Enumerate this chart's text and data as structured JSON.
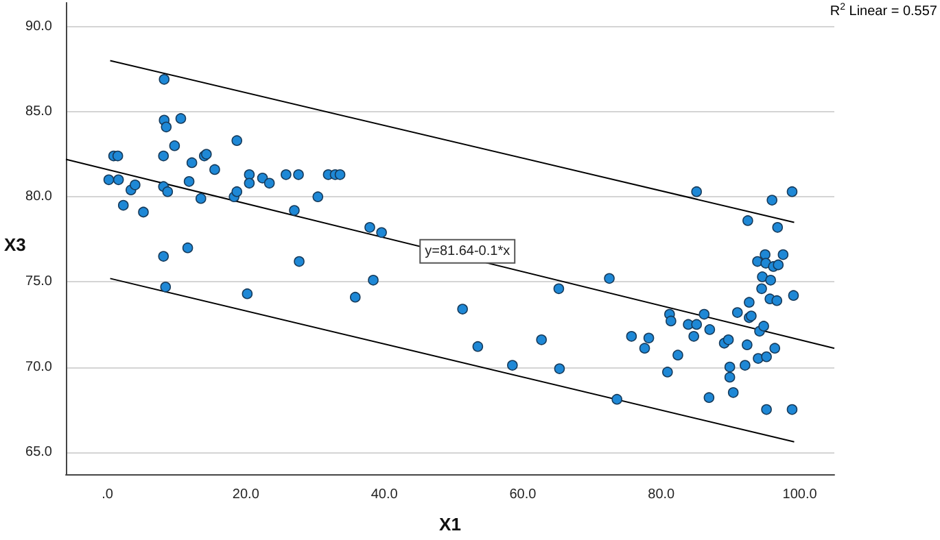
{
  "chart_data": {
    "type": "scatter",
    "xlabel": "X1",
    "ylabel": "X3",
    "annotations": [
      "R$^{2}$ Linear = 0.557",
      {
        "text": "y=81.64-0.1*x",
        "x": 52,
        "y": 76.8
      }
    ],
    "xlim": [
      -6,
      105
    ],
    "ylim": [
      63.7,
      91.4
    ],
    "xticks": [
      {
        "value": 0,
        "label": ".0"
      },
      {
        "value": 20,
        "label": "20.0"
      },
      {
        "value": 40,
        "label": "40.0"
      },
      {
        "value": 60,
        "label": "60.0"
      },
      {
        "value": 80,
        "label": "80.0"
      },
      {
        "value": 100,
        "label": "100.0"
      }
    ],
    "yticks": [
      {
        "value": 65,
        "label": "65.0"
      },
      {
        "value": 70,
        "label": "70.0"
      },
      {
        "value": 75,
        "label": "75.0"
      },
      {
        "value": 80,
        "label": "80.0"
      },
      {
        "value": 85,
        "label": "85.0"
      },
      {
        "value": 90,
        "label": "90.0"
      }
    ],
    "grid": "y",
    "marker": "circle",
    "series": [
      {
        "color": "#1e88d6",
        "x": [
          8.2,
          8.2,
          8.5,
          10.6,
          9.7,
          18.7,
          0.9,
          1.5,
          8.1,
          12.2,
          14.0,
          14.3,
          15.5,
          0.2,
          1.6,
          3.4,
          4.0,
          8.1,
          8.7,
          11.8,
          13.5,
          18.3,
          18.7,
          20.5,
          20.5,
          22.4,
          23.4,
          25.8,
          27.6,
          31.9,
          32.9,
          33.6,
          2.3,
          5.2,
          27.0,
          30.4,
          8.1,
          11.6,
          27.7,
          8.4,
          20.2,
          37.9,
          39.6,
          38.4,
          35.8,
          72.5,
          65.2,
          51.3,
          53.5,
          62.7,
          58.5,
          65.3,
          73.6,
          85.1,
          96.0,
          98.9,
          92.5,
          96.8,
          95.0,
          97.6,
          93.9,
          95.1,
          96.2,
          96.9,
          94.6,
          95.8,
          94.5,
          95.7,
          96.7,
          99.1,
          92.7,
          91.0,
          92.7,
          93.0,
          81.2,
          81.4,
          83.9,
          85.1,
          86.2,
          94.2,
          94.8,
          75.7,
          78.2,
          77.6,
          84.7,
          87.0,
          89.1,
          89.7,
          92.4,
          96.4,
          82.4,
          94.0,
          95.2,
          89.9,
          92.1,
          80.9,
          89.9,
          86.9,
          90.4,
          95.2,
          98.9
        ],
        "values": [
          86.9,
          84.5,
          84.1,
          84.6,
          83.0,
          83.3,
          82.4,
          82.4,
          82.4,
          82.0,
          82.4,
          82.5,
          81.6,
          81.0,
          81.0,
          80.4,
          80.7,
          80.6,
          80.3,
          80.9,
          79.9,
          80.0,
          80.3,
          81.3,
          80.8,
          81.1,
          80.8,
          81.3,
          81.3,
          81.3,
          81.3,
          81.3,
          79.5,
          79.1,
          79.2,
          80.0,
          76.5,
          77.0,
          76.2,
          74.7,
          74.3,
          78.2,
          77.9,
          75.1,
          74.1,
          75.2,
          74.6,
          73.4,
          71.2,
          71.6,
          70.1,
          69.9,
          68.1,
          80.3,
          79.8,
          80.3,
          78.6,
          78.2,
          76.6,
          76.6,
          76.2,
          76.1,
          75.9,
          76.0,
          75.3,
          75.1,
          74.6,
          74.0,
          73.9,
          74.2,
          73.8,
          73.2,
          72.9,
          73.0,
          73.1,
          72.7,
          72.5,
          72.5,
          73.1,
          72.1,
          72.4,
          71.8,
          71.7,
          71.1,
          71.8,
          72.2,
          71.4,
          71.6,
          71.3,
          71.1,
          70.7,
          70.5,
          70.6,
          70.0,
          70.1,
          69.7,
          69.4,
          68.2,
          68.5,
          67.5,
          67.5
        ]
      },
      {
        "type": "line",
        "color": "#000000",
        "marker": "none",
        "x": [
          -6,
          105
        ],
        "values": [
          82.2,
          71.1
        ]
      },
      {
        "type": "line",
        "color": "#000000",
        "marker": "none",
        "x": [
          0.4,
          99.2
        ],
        "values": [
          88.0,
          78.5
        ]
      },
      {
        "type": "line",
        "color": "#000000",
        "marker": "none",
        "x": [
          0.4,
          99.2
        ],
        "values": [
          75.2,
          65.6
        ]
      }
    ]
  }
}
